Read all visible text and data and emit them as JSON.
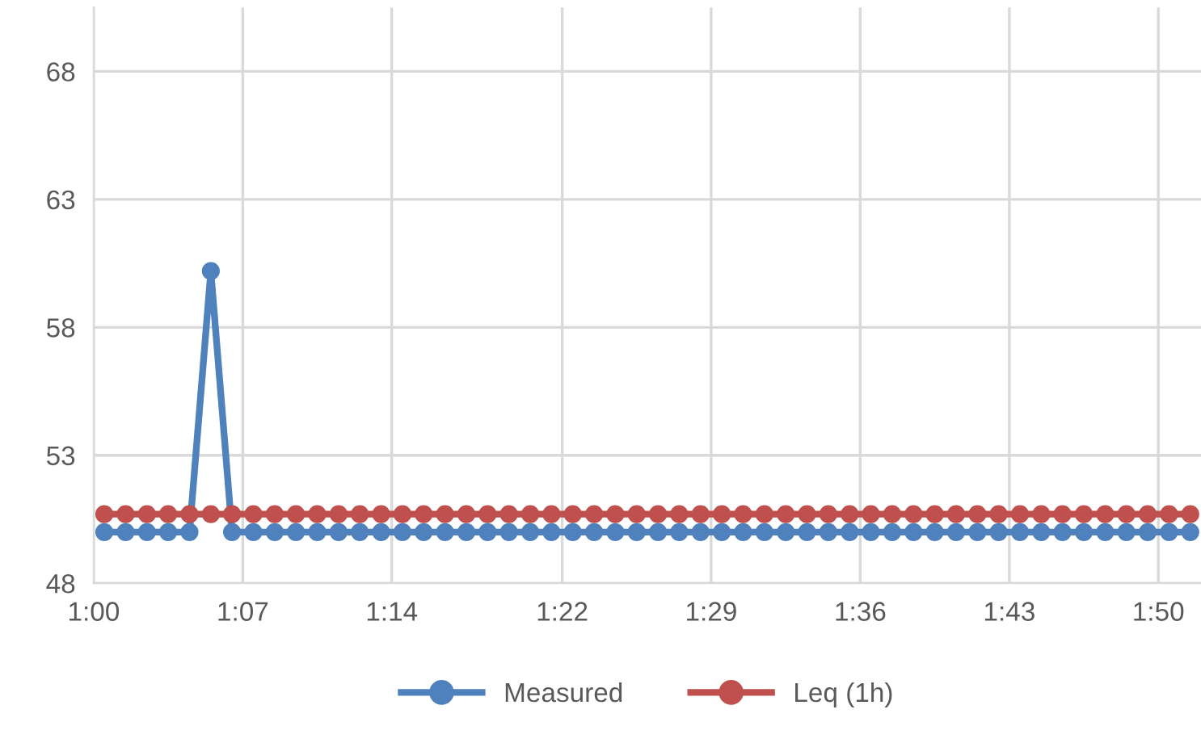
{
  "chart_data": {
    "type": "line",
    "x": [
      1.0083,
      1.025,
      1.0417,
      1.0583,
      1.075,
      1.0917,
      1.1083,
      1.125,
      1.1417,
      1.1583,
      1.175,
      1.1917,
      1.2083,
      1.225,
      1.2417,
      1.2583,
      1.275,
      1.2917,
      1.3083,
      1.325,
      1.3417,
      1.3583,
      1.375,
      1.3917,
      1.4083,
      1.425,
      1.4417,
      1.4583,
      1.475,
      1.4917,
      1.5083,
      1.525,
      1.5417,
      1.5583,
      1.575,
      1.5917,
      1.6083,
      1.625,
      1.6417,
      1.6583,
      1.675,
      1.6917,
      1.7083,
      1.725,
      1.7417,
      1.7583,
      1.775,
      1.7917,
      1.8083,
      1.825,
      1.8417,
      1.8583
    ],
    "series": [
      {
        "name": "Measured",
        "color": "#4f81bd",
        "values": [
          50,
          50,
          50,
          50,
          50,
          60.2,
          50,
          50,
          50,
          50,
          50,
          50,
          50,
          50,
          50,
          50,
          50,
          50,
          50,
          50,
          50,
          50,
          50,
          50,
          50,
          50,
          50,
          50,
          50,
          50,
          50,
          50,
          50,
          50,
          50,
          50,
          50,
          50,
          50,
          50,
          50,
          50,
          50,
          50,
          50,
          50,
          50,
          50,
          50,
          50,
          50,
          50
        ]
      },
      {
        "name": "Leq (1h)",
        "color": "#c0504d",
        "values": [
          50.7,
          50.7,
          50.7,
          50.7,
          50.7,
          50.7,
          50.7,
          50.7,
          50.7,
          50.7,
          50.7,
          50.7,
          50.7,
          50.7,
          50.7,
          50.7,
          50.7,
          50.7,
          50.7,
          50.7,
          50.7,
          50.7,
          50.7,
          50.7,
          50.7,
          50.7,
          50.7,
          50.7,
          50.7,
          50.7,
          50.7,
          50.7,
          50.7,
          50.7,
          50.7,
          50.7,
          50.7,
          50.7,
          50.7,
          50.7,
          50.7,
          50.7,
          50.7,
          50.7,
          50.7,
          50.7,
          50.7,
          50.7,
          50.7,
          50.7,
          50.7,
          50.7
        ]
      }
    ],
    "xlim": [
      1.0,
      1.8667
    ],
    "xticks": [
      {
        "value": 1.0,
        "label": "1:00"
      },
      {
        "value": 1.1167,
        "label": "1:07"
      },
      {
        "value": 1.2333,
        "label": "1:14"
      },
      {
        "value": 1.3667,
        "label": "1:22"
      },
      {
        "value": 1.4833,
        "label": "1:29"
      },
      {
        "value": 1.6,
        "label": "1:36"
      },
      {
        "value": 1.7167,
        "label": "1:43"
      },
      {
        "value": 1.8333,
        "label": "1:50"
      }
    ],
    "ylim": [
      48,
      70.5
    ],
    "yticks": [
      48,
      53,
      58,
      63,
      68
    ],
    "grid": true,
    "legend": "bottom",
    "marker": "circle",
    "line_style": "solid"
  }
}
